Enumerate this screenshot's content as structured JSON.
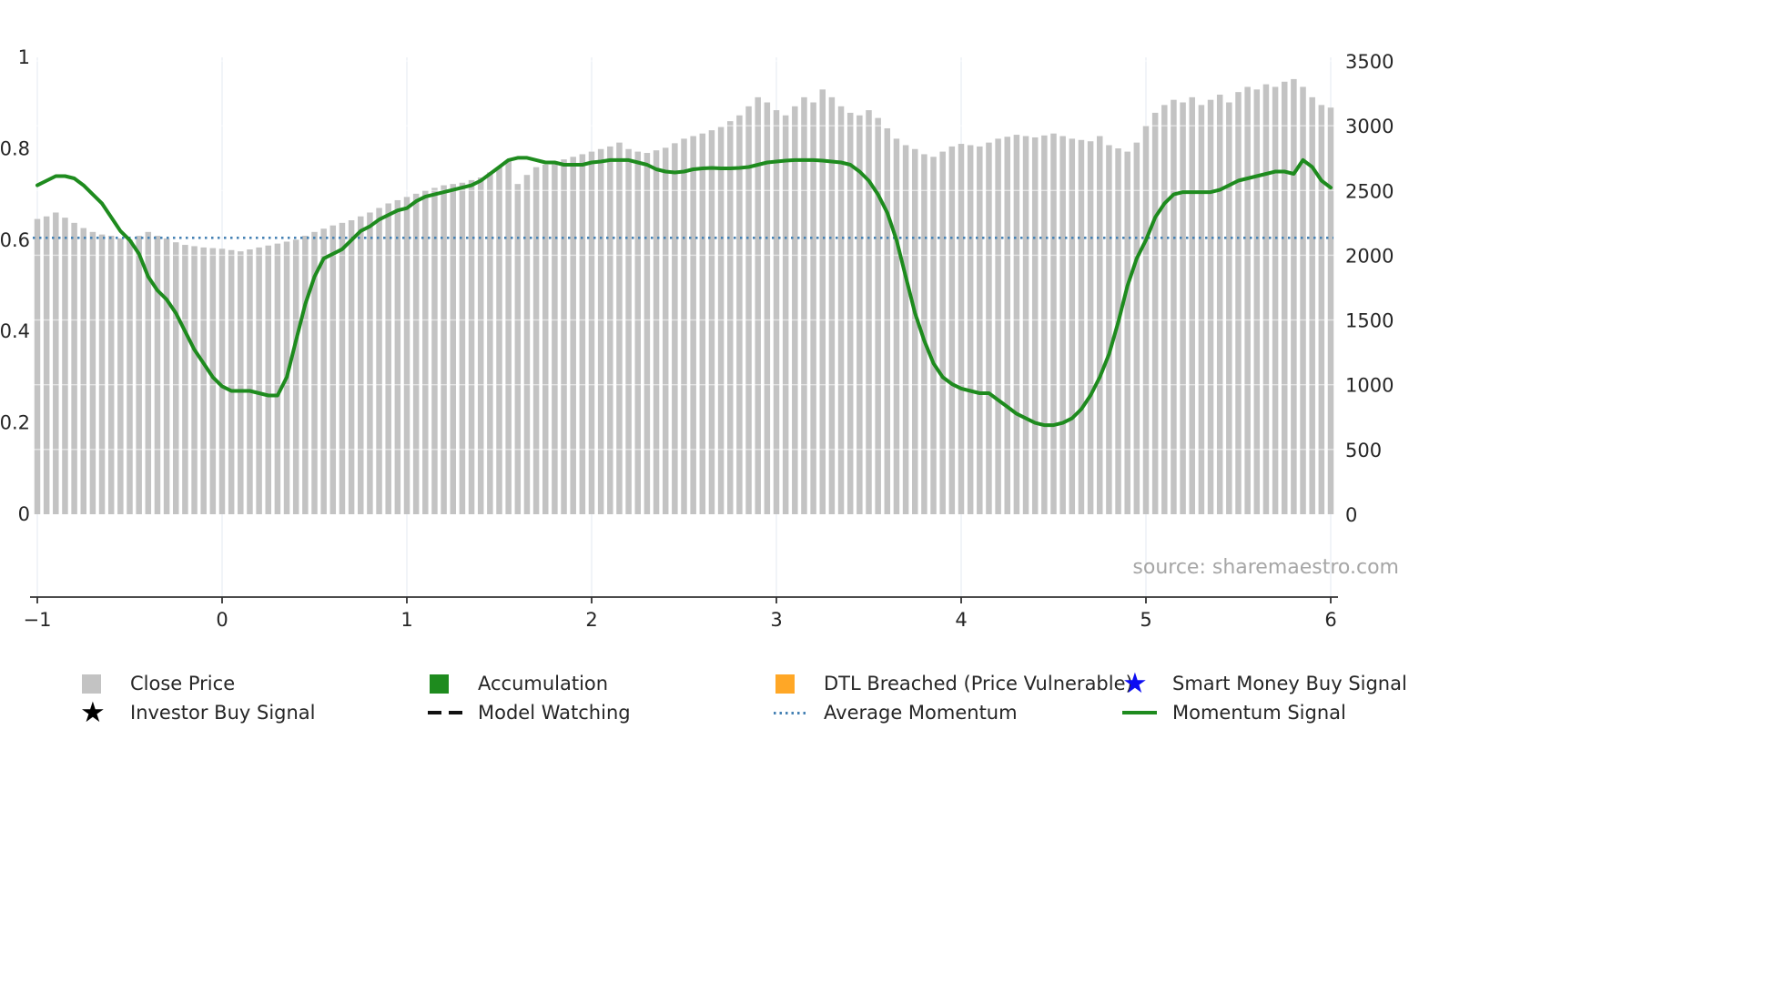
{
  "source_note": "source: sharemaestro.com",
  "colors": {
    "close_price_bar": "#c3c3c3",
    "momentum_green": "#1e8b1e",
    "average_momentum_blue": "#4682B4",
    "dtl_breached_orange": "#FFA726",
    "smart_money_blue": "#0d0df2",
    "text": "#262626",
    "source_text": "#a6a6a6"
  },
  "legend": {
    "items": [
      {
        "label": "Close Price",
        "swatch": "square",
        "color": "#c3c3c3"
      },
      {
        "label": "Accumulation",
        "swatch": "square",
        "color": "#1e8b1e"
      },
      {
        "label": "DTL Breached (Price Vulnerable)",
        "swatch": "square",
        "color": "#FFA726"
      },
      {
        "label": "Smart Money Buy Signal",
        "swatch": "star",
        "color": "#0d0df2"
      },
      {
        "label": "Investor Buy Signal",
        "swatch": "star",
        "color": "#000000"
      },
      {
        "label": "Model Watching",
        "swatch": "dashed-line",
        "color": "#000000"
      },
      {
        "label": "Average Momentum",
        "swatch": "dotted-line",
        "color": "#4682B4"
      },
      {
        "label": "Momentum Signal",
        "swatch": "solid-line",
        "color": "#1e8b1e"
      }
    ]
  },
  "chart_data": {
    "type": "bar",
    "title": "",
    "xlabel": "",
    "ylabel_left": "",
    "ylabel_right": "",
    "xlim": [
      -1,
      6
    ],
    "ylim_left": [
      0,
      1
    ],
    "ylim_right": [
      0,
      3500
    ],
    "x_ticks": [
      -1,
      0,
      1,
      2,
      3,
      4,
      5,
      6
    ],
    "x_tick_labels": [
      "−1",
      "0",
      "1",
      "2",
      "3",
      "4",
      "5",
      "6"
    ],
    "y_ticks_left": [
      0,
      0.2,
      0.4,
      0.6,
      0.8,
      1
    ],
    "y_tick_labels_left": [
      "0",
      "0.2",
      "0.4",
      "0.6",
      "0.8",
      "1"
    ],
    "y_ticks_right": [
      0,
      500,
      1000,
      1500,
      2000,
      2500,
      3000,
      3500
    ],
    "y_tick_labels_right": [
      "0",
      "500",
      "1000",
      "1500",
      "2000",
      "2500",
      "3000",
      "3500"
    ],
    "legend_position": "bottom",
    "grid": true,
    "x_start": -1,
    "x_step": 0.05,
    "close_price": {
      "name": "Close Price",
      "type": "bar",
      "axis": "right",
      "color": "#c3c3c3",
      "values": [
        2280,
        2300,
        2330,
        2290,
        2250,
        2210,
        2180,
        2160,
        2150,
        2130,
        2120,
        2150,
        2180,
        2150,
        2130,
        2100,
        2080,
        2070,
        2060,
        2055,
        2050,
        2040,
        2030,
        2045,
        2060,
        2075,
        2090,
        2105,
        2120,
        2150,
        2180,
        2205,
        2230,
        2250,
        2270,
        2300,
        2330,
        2365,
        2400,
        2425,
        2450,
        2475,
        2500,
        2520,
        2540,
        2550,
        2560,
        2580,
        2600,
        2640,
        2680,
        2730,
        2550,
        2620,
        2680,
        2700,
        2720,
        2740,
        2760,
        2780,
        2800,
        2820,
        2840,
        2870,
        2820,
        2800,
        2790,
        2810,
        2830,
        2865,
        2900,
        2920,
        2940,
        2965,
        2990,
        3035,
        3080,
        3150,
        3220,
        3180,
        3120,
        3080,
        3150,
        3220,
        3180,
        3280,
        3220,
        3150,
        3100,
        3080,
        3120,
        3060,
        2980,
        2900,
        2850,
        2820,
        2780,
        2760,
        2800,
        2840,
        2860,
        2850,
        2840,
        2870,
        2900,
        2915,
        2930,
        2920,
        2910,
        2925,
        2940,
        2920,
        2900,
        2890,
        2880,
        2920,
        2850,
        2825,
        2800,
        2870,
        3000,
        3100,
        3160,
        3200,
        3180,
        3220,
        3160,
        3200,
        3240,
        3180,
        3260,
        3300,
        3280,
        3320,
        3300,
        3340,
        3360,
        3300,
        3220,
        3160,
        3140
      ]
    },
    "momentum_signal": {
      "name": "Momentum Signal",
      "type": "line",
      "axis": "left",
      "color": "#1e8b1e",
      "values": [
        0.72,
        0.73,
        0.74,
        0.74,
        0.735,
        0.72,
        0.7,
        0.68,
        0.65,
        0.62,
        0.6,
        0.57,
        0.52,
        0.49,
        0.47,
        0.44,
        0.4,
        0.36,
        0.33,
        0.3,
        0.28,
        0.27,
        0.27,
        0.27,
        0.265,
        0.26,
        0.26,
        0.3,
        0.38,
        0.46,
        0.52,
        0.56,
        0.57,
        0.58,
        0.6,
        0.62,
        0.63,
        0.645,
        0.655,
        0.665,
        0.67,
        0.685,
        0.695,
        0.7,
        0.705,
        0.71,
        0.715,
        0.72,
        0.73,
        0.745,
        0.76,
        0.775,
        0.78,
        0.78,
        0.775,
        0.77,
        0.77,
        0.765,
        0.765,
        0.765,
        0.77,
        0.772,
        0.775,
        0.775,
        0.775,
        0.77,
        0.765,
        0.755,
        0.75,
        0.748,
        0.75,
        0.755,
        0.757,
        0.758,
        0.757,
        0.757,
        0.758,
        0.76,
        0.765,
        0.77,
        0.772,
        0.774,
        0.775,
        0.775,
        0.775,
        0.774,
        0.772,
        0.77,
        0.765,
        0.75,
        0.73,
        0.7,
        0.66,
        0.6,
        0.52,
        0.44,
        0.38,
        0.33,
        0.3,
        0.285,
        0.275,
        0.27,
        0.265,
        0.265,
        0.25,
        0.235,
        0.22,
        0.21,
        0.2,
        0.195,
        0.195,
        0.2,
        0.21,
        0.23,
        0.26,
        0.3,
        0.35,
        0.42,
        0.5,
        0.56,
        0.6,
        0.65,
        0.68,
        0.7,
        0.705,
        0.705,
        0.705,
        0.705,
        0.71,
        0.72,
        0.73,
        0.735,
        0.74,
        0.745,
        0.75,
        0.75,
        0.745,
        0.775,
        0.76,
        0.73,
        0.715
      ]
    },
    "average_momentum": {
      "name": "Average Momentum",
      "type": "hline",
      "axis": "left",
      "color": "#4682B4",
      "line_style": "dotted",
      "value": 0.605
    }
  }
}
